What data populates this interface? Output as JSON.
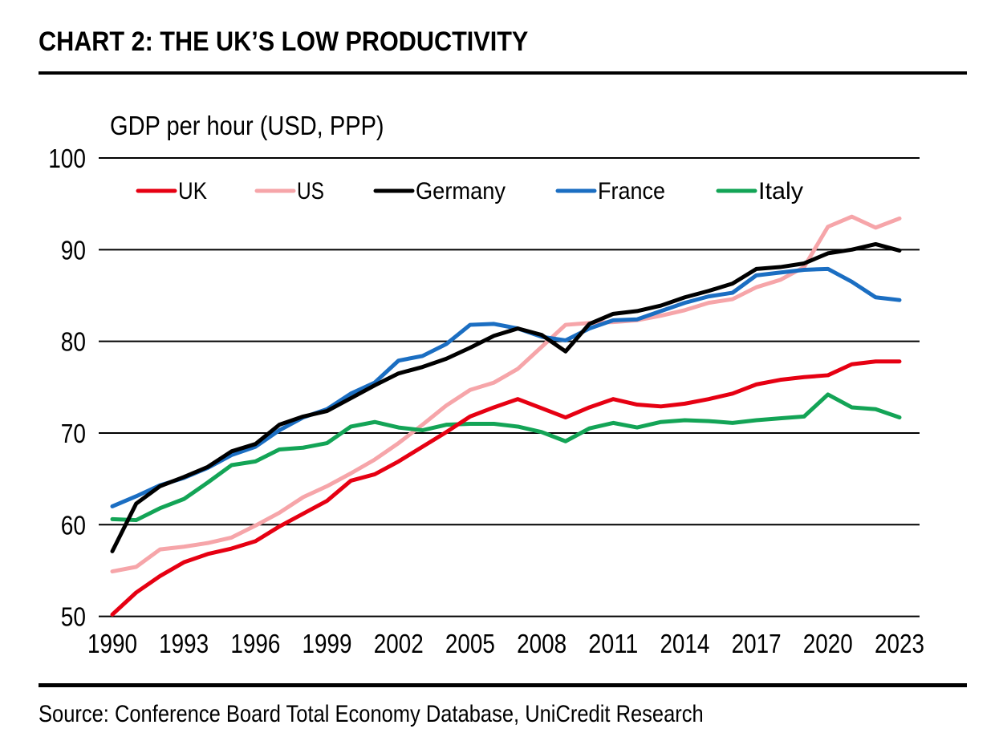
{
  "header": {
    "title": "CHART 2: THE UK’S LOW PRODUCTIVITY"
  },
  "source": {
    "text": "Source: Conference Board Total Economy Database, UniCredit Research"
  },
  "chart_data": {
    "type": "line",
    "title": "GDP per hour (USD, PPP)",
    "xlabel": "",
    "ylabel": "GDP per hour (USD, PPP)",
    "x_range": [
      1990,
      2023
    ],
    "ylim": [
      48.5,
      102
    ],
    "grid": "horizontal",
    "legend_position": "top-inside",
    "y_ticks": [
      100,
      90,
      80,
      70,
      60,
      50
    ],
    "x_tick_labels": [
      "1990",
      "1993",
      "1996",
      "1999",
      "2002",
      "2005",
      "2008",
      "2011",
      "2014",
      "2017",
      "2020",
      "2023"
    ],
    "x": [
      1990,
      1991,
      1992,
      1993,
      1994,
      1995,
      1996,
      1997,
      1998,
      1999,
      2000,
      2001,
      2002,
      2003,
      2004,
      2005,
      2006,
      2007,
      2008,
      2009,
      2010,
      2011,
      2012,
      2013,
      2014,
      2015,
      2016,
      2017,
      2018,
      2019,
      2020,
      2021,
      2022,
      2023
    ],
    "series": [
      {
        "name": "UK",
        "color": "#e60012",
        "values": [
          50.2,
          52.6,
          54.4,
          55.9,
          56.8,
          57.4,
          58.2,
          59.8,
          61.2,
          62.6,
          64.8,
          65.5,
          66.9,
          68.5,
          70.1,
          71.8,
          72.8,
          73.7,
          72.7,
          71.7,
          72.8,
          73.7,
          73.1,
          72.9,
          73.2,
          73.7,
          74.3,
          75.3,
          75.8,
          76.1,
          76.3,
          77.5,
          77.8,
          77.8
        ]
      },
      {
        "name": "US",
        "color": "#f6a5a9",
        "values": [
          54.9,
          55.4,
          57.3,
          57.6,
          58.0,
          58.6,
          59.9,
          61.3,
          63.0,
          64.2,
          65.6,
          67.1,
          68.9,
          70.9,
          73.0,
          74.7,
          75.5,
          77.0,
          79.4,
          81.8,
          82.0,
          82.1,
          82.3,
          82.8,
          83.4,
          84.2,
          84.6,
          85.9,
          86.7,
          88.1,
          92.5,
          93.6,
          92.4,
          93.4
        ]
      },
      {
        "name": "Germany",
        "color": "#000000",
        "values": [
          57.1,
          62.3,
          64.2,
          65.2,
          66.3,
          68.0,
          68.8,
          70.9,
          71.8,
          72.4,
          73.8,
          75.2,
          76.5,
          77.2,
          78.1,
          79.3,
          80.6,
          81.4,
          80.7,
          78.9,
          81.9,
          83.0,
          83.3,
          83.9,
          84.8,
          85.5,
          86.3,
          87.9,
          88.1,
          88.5,
          89.6,
          90.0,
          90.6,
          89.9
        ]
      },
      {
        "name": "France",
        "color": "#1b6ec2",
        "values": [
          62.0,
          63.1,
          64.3,
          65.1,
          66.2,
          67.6,
          68.5,
          70.3,
          71.7,
          72.6,
          74.3,
          75.5,
          77.9,
          78.4,
          79.7,
          81.8,
          81.9,
          81.4,
          80.5,
          80.1,
          81.4,
          82.3,
          82.4,
          83.3,
          84.2,
          84.9,
          85.3,
          87.2,
          87.5,
          87.8,
          87.9,
          86.5,
          84.8,
          84.5
        ]
      },
      {
        "name": "Italy",
        "color": "#13a456",
        "values": [
          60.6,
          60.5,
          61.8,
          62.8,
          64.6,
          66.5,
          66.9,
          68.2,
          68.4,
          68.9,
          70.7,
          71.2,
          70.6,
          70.3,
          70.9,
          71.0,
          71.0,
          70.7,
          70.1,
          69.1,
          70.5,
          71.1,
          70.6,
          71.2,
          71.4,
          71.3,
          71.1,
          71.4,
          71.6,
          71.8,
          74.2,
          72.8,
          72.6,
          71.7
        ]
      }
    ]
  }
}
